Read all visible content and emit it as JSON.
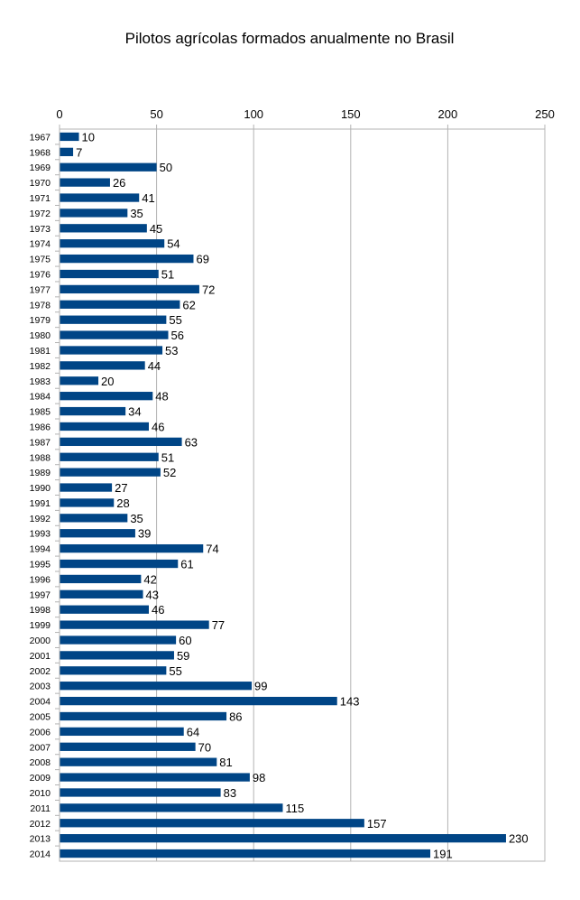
{
  "chart_data": {
    "type": "bar",
    "orientation": "horizontal",
    "title": "Pilotos agrícolas formados anualmente no Brasil",
    "xlabel": "",
    "ylabel": "",
    "xlim": [
      0,
      250
    ],
    "x_ticks": [
      0,
      50,
      100,
      150,
      200,
      250
    ],
    "grid": true,
    "legend": "none",
    "bar_color": "#004586",
    "categories": [
      "1967",
      "1968",
      "1969",
      "1970",
      "1971",
      "1972",
      "1973",
      "1974",
      "1975",
      "1976",
      "1977",
      "1978",
      "1979",
      "1980",
      "1981",
      "1982",
      "1983",
      "1984",
      "1985",
      "1986",
      "1987",
      "1988",
      "1989",
      "1990",
      "1991",
      "1992",
      "1993",
      "1994",
      "1995",
      "1996",
      "1997",
      "1998",
      "1999",
      "2000",
      "2001",
      "2002",
      "2003",
      "2004",
      "2005",
      "2006",
      "2007",
      "2008",
      "2009",
      "2010",
      "2011",
      "2012",
      "2013",
      "2014"
    ],
    "values": [
      10,
      7,
      50,
      26,
      41,
      35,
      45,
      54,
      69,
      51,
      72,
      62,
      55,
      56,
      53,
      44,
      20,
      48,
      34,
      46,
      63,
      51,
      52,
      27,
      28,
      35,
      39,
      74,
      61,
      42,
      43,
      46,
      77,
      60,
      59,
      55,
      99,
      143,
      86,
      64,
      70,
      81,
      98,
      83,
      115,
      157,
      230,
      191
    ]
  }
}
